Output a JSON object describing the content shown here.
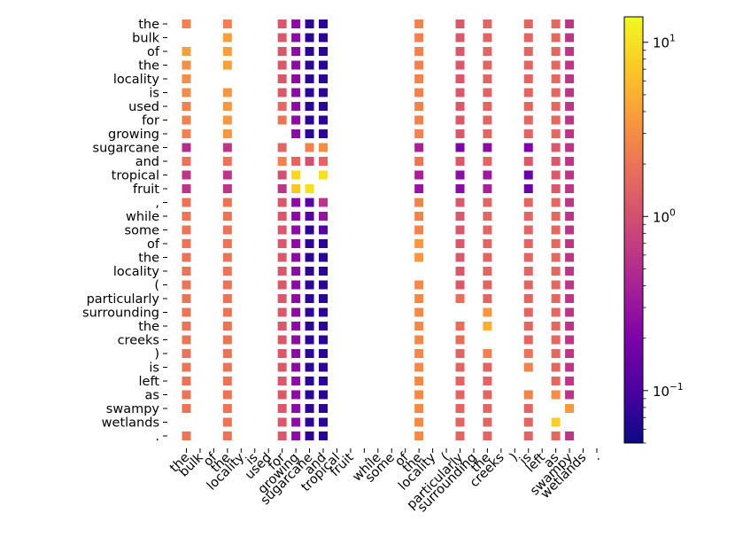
{
  "chart_data": {
    "type": "heatmap",
    "title": "",
    "xlabel": "",
    "ylabel": "",
    "colormap": "plasma",
    "color_scale": "log",
    "colorbar": {
      "vmin": 0.05,
      "vmax": 14.0,
      "ticks": [
        {
          "base": "10",
          "exp": "−1",
          "value": 0.1
        },
        {
          "base": "10",
          "exp": "0",
          "value": 1
        },
        {
          "base": "10",
          "exp": "1",
          "value": 10
        }
      ]
    },
    "tokens": [
      "the",
      "bulk",
      "of",
      "the",
      "locality",
      "is",
      "used",
      "for",
      "growing",
      "sugarcane",
      "and",
      "tropical",
      "fruit",
      ",",
      "while",
      "some",
      "of",
      "the",
      "locality",
      "(",
      "particularly",
      "surrounding",
      "the",
      "creeks",
      ")",
      "is",
      "left",
      "as",
      "swampy",
      "wetlands",
      "."
    ],
    "note": "Square matrix of token-to-token values; null = no marker drawn. Values estimated from colour.",
    "values": [
      [
        2.5,
        null,
        null,
        2.5,
        null,
        null,
        null,
        1.2,
        0.25,
        0.07,
        0.07,
        null,
        null,
        null,
        null,
        null,
        null,
        2.5,
        null,
        null,
        1.2,
        null,
        1.5,
        null,
        null,
        1.5,
        null,
        1.6,
        0.6,
        null,
        null
      ],
      [
        null,
        null,
        null,
        4.0,
        null,
        null,
        null,
        1.2,
        0.25,
        0.07,
        0.07,
        null,
        null,
        null,
        null,
        null,
        null,
        2.5,
        null,
        null,
        1.2,
        null,
        1.5,
        null,
        null,
        1.5,
        null,
        1.6,
        0.6,
        null,
        null
      ],
      [
        4.0,
        null,
        null,
        4.0,
        null,
        null,
        null,
        1.2,
        0.25,
        0.07,
        0.07,
        null,
        null,
        null,
        null,
        null,
        null,
        2.5,
        null,
        null,
        1.2,
        null,
        1.5,
        null,
        null,
        1.5,
        null,
        1.6,
        0.6,
        null,
        null
      ],
      [
        3.0,
        null,
        null,
        4.0,
        null,
        null,
        null,
        1.2,
        0.25,
        0.07,
        0.07,
        null,
        null,
        null,
        null,
        null,
        null,
        2.5,
        null,
        null,
        1.2,
        null,
        1.5,
        null,
        null,
        1.5,
        null,
        1.6,
        0.6,
        null,
        null
      ],
      [
        3.0,
        null,
        null,
        null,
        null,
        null,
        null,
        1.2,
        0.25,
        0.07,
        0.07,
        null,
        null,
        null,
        null,
        null,
        null,
        2.5,
        null,
        null,
        1.2,
        null,
        1.5,
        null,
        null,
        1.5,
        null,
        1.6,
        0.6,
        null,
        null
      ],
      [
        3.0,
        null,
        null,
        3.5,
        null,
        null,
        null,
        1.2,
        0.25,
        0.07,
        0.07,
        null,
        null,
        null,
        null,
        null,
        null,
        2.5,
        null,
        null,
        1.2,
        null,
        1.5,
        null,
        null,
        1.5,
        null,
        1.6,
        0.6,
        null,
        null
      ],
      [
        2.5,
        null,
        null,
        3.5,
        null,
        null,
        null,
        1.6,
        0.25,
        0.07,
        0.07,
        null,
        null,
        null,
        null,
        null,
        null,
        2.5,
        null,
        null,
        1.2,
        null,
        1.5,
        null,
        null,
        1.5,
        null,
        1.6,
        0.6,
        null,
        null
      ],
      [
        2.5,
        null,
        null,
        3.5,
        null,
        null,
        null,
        2.0,
        0.25,
        0.07,
        0.07,
        null,
        null,
        null,
        null,
        null,
        null,
        2.5,
        null,
        null,
        1.2,
        null,
        1.5,
        null,
        null,
        1.5,
        null,
        1.6,
        0.6,
        null,
        null
      ],
      [
        2.5,
        null,
        null,
        3.5,
        null,
        null,
        null,
        null,
        0.25,
        0.07,
        0.07,
        null,
        null,
        null,
        null,
        null,
        null,
        2.5,
        null,
        null,
        1.2,
        null,
        1.5,
        null,
        null,
        1.5,
        null,
        1.6,
        0.6,
        null,
        null
      ],
      [
        0.5,
        null,
        null,
        0.6,
        null,
        null,
        null,
        1.5,
        null,
        2.5,
        3.0,
        null,
        null,
        null,
        null,
        null,
        null,
        0.4,
        null,
        null,
        0.2,
        null,
        0.25,
        null,
        null,
        0.2,
        null,
        1.2,
        0.6,
        null,
        null
      ],
      [
        2.0,
        null,
        null,
        2.0,
        null,
        null,
        null,
        2.5,
        1.5,
        1.0,
        1.5,
        null,
        null,
        null,
        null,
        null,
        null,
        2.0,
        null,
        null,
        1.2,
        null,
        1.5,
        null,
        null,
        1.2,
        null,
        1.2,
        0.6,
        null,
        null
      ],
      [
        0.6,
        null,
        null,
        0.6,
        null,
        null,
        null,
        1.0,
        9.0,
        null,
        10.0,
        null,
        null,
        null,
        null,
        null,
        null,
        0.4,
        null,
        null,
        0.25,
        null,
        0.35,
        null,
        null,
        0.15,
        null,
        1.2,
        0.6,
        null,
        null
      ],
      [
        0.6,
        null,
        null,
        0.6,
        null,
        null,
        null,
        0.6,
        7.0,
        10.0,
        null,
        null,
        null,
        null,
        null,
        null,
        null,
        0.3,
        null,
        null,
        0.25,
        null,
        0.4,
        null,
        null,
        0.15,
        null,
        1.2,
        0.6,
        null,
        null
      ],
      [
        2.0,
        null,
        null,
        2.0,
        null,
        null,
        null,
        1.2,
        0.25,
        0.12,
        0.6,
        null,
        null,
        null,
        null,
        null,
        null,
        2.5,
        null,
        null,
        1.2,
        null,
        1.5,
        null,
        null,
        1.5,
        null,
        1.6,
        0.6,
        null,
        null
      ],
      [
        2.0,
        null,
        null,
        2.0,
        null,
        null,
        null,
        1.2,
        0.25,
        0.12,
        0.3,
        null,
        null,
        null,
        null,
        null,
        null,
        2.5,
        null,
        null,
        1.2,
        null,
        1.5,
        null,
        null,
        1.5,
        null,
        1.6,
        0.6,
        null,
        null
      ],
      [
        2.0,
        null,
        null,
        2.0,
        null,
        null,
        null,
        1.2,
        0.25,
        0.07,
        0.12,
        null,
        null,
        null,
        null,
        null,
        null,
        2.5,
        null,
        null,
        1.2,
        null,
        1.5,
        null,
        null,
        1.5,
        null,
        1.6,
        0.6,
        null,
        null
      ],
      [
        2.0,
        null,
        null,
        2.0,
        null,
        null,
        null,
        1.2,
        0.25,
        0.07,
        0.07,
        null,
        null,
        null,
        null,
        null,
        null,
        3.5,
        null,
        null,
        1.2,
        null,
        1.5,
        null,
        null,
        1.5,
        null,
        1.6,
        0.6,
        null,
        null
      ],
      [
        2.0,
        null,
        null,
        2.0,
        null,
        null,
        null,
        1.2,
        0.25,
        0.07,
        0.07,
        null,
        null,
        null,
        null,
        null,
        null,
        3.5,
        null,
        null,
        1.2,
        null,
        1.5,
        null,
        null,
        1.5,
        null,
        1.6,
        0.6,
        null,
        null
      ],
      [
        2.0,
        null,
        null,
        2.0,
        null,
        null,
        null,
        1.2,
        0.25,
        0.07,
        0.07,
        null,
        null,
        null,
        null,
        null,
        null,
        null,
        null,
        null,
        1.2,
        null,
        1.5,
        null,
        null,
        1.5,
        null,
        1.6,
        0.6,
        null,
        null
      ],
      [
        2.0,
        null,
        null,
        2.0,
        null,
        null,
        null,
        1.2,
        0.25,
        0.07,
        0.07,
        null,
        null,
        null,
        null,
        null,
        null,
        2.8,
        null,
        null,
        1.2,
        null,
        1.5,
        null,
        null,
        1.5,
        null,
        1.6,
        0.6,
        null,
        null
      ],
      [
        2.0,
        null,
        null,
        2.0,
        null,
        null,
        null,
        1.2,
        0.25,
        0.07,
        0.07,
        null,
        null,
        null,
        null,
        null,
        null,
        2.8,
        null,
        null,
        1.8,
        null,
        1.5,
        null,
        null,
        1.5,
        null,
        1.6,
        0.6,
        null,
        null
      ],
      [
        2.0,
        null,
        null,
        2.0,
        null,
        null,
        null,
        1.2,
        0.25,
        0.07,
        0.07,
        null,
        null,
        null,
        null,
        null,
        null,
        2.8,
        null,
        null,
        null,
        null,
        3.5,
        null,
        null,
        1.5,
        null,
        1.6,
        0.6,
        null,
        null
      ],
      [
        2.0,
        null,
        null,
        2.0,
        null,
        null,
        null,
        1.2,
        0.25,
        0.07,
        0.07,
        null,
        null,
        null,
        null,
        null,
        null,
        2.8,
        null,
        null,
        1.8,
        null,
        5.0,
        null,
        null,
        1.5,
        null,
        1.6,
        0.6,
        null,
        null
      ],
      [
        2.0,
        null,
        null,
        2.0,
        null,
        null,
        null,
        1.2,
        0.25,
        0.07,
        0.07,
        null,
        null,
        null,
        null,
        null,
        null,
        2.8,
        null,
        null,
        1.8,
        null,
        null,
        null,
        null,
        1.5,
        null,
        1.6,
        0.6,
        null,
        null
      ],
      [
        2.0,
        null,
        null,
        2.0,
        null,
        null,
        null,
        1.2,
        0.25,
        0.07,
        0.07,
        null,
        null,
        null,
        null,
        null,
        null,
        2.8,
        null,
        null,
        1.5,
        null,
        2.5,
        null,
        null,
        2.0,
        null,
        1.6,
        0.6,
        null,
        null
      ],
      [
        2.0,
        null,
        null,
        2.0,
        null,
        null,
        null,
        1.2,
        0.25,
        0.07,
        0.07,
        null,
        null,
        null,
        null,
        null,
        null,
        2.8,
        null,
        null,
        1.5,
        null,
        1.5,
        null,
        null,
        2.5,
        null,
        1.6,
        0.6,
        null,
        null
      ],
      [
        2.0,
        null,
        null,
        2.0,
        null,
        null,
        null,
        1.2,
        0.25,
        0.07,
        0.07,
        null,
        null,
        null,
        null,
        null,
        null,
        2.8,
        null,
        null,
        1.5,
        null,
        1.5,
        null,
        null,
        null,
        null,
        1.6,
        0.6,
        null,
        null
      ],
      [
        2.0,
        null,
        null,
        2.0,
        null,
        null,
        null,
        1.2,
        0.25,
        0.07,
        0.07,
        null,
        null,
        null,
        null,
        null,
        null,
        2.8,
        null,
        null,
        1.5,
        null,
        1.5,
        null,
        null,
        2.5,
        null,
        3.0,
        0.6,
        null,
        null
      ],
      [
        2.0,
        null,
        null,
        2.0,
        null,
        null,
        null,
        1.2,
        0.25,
        0.07,
        0.07,
        null,
        null,
        null,
        null,
        null,
        null,
        2.8,
        null,
        null,
        1.5,
        null,
        1.5,
        null,
        null,
        1.5,
        null,
        null,
        3.5,
        null,
        null
      ],
      [
        null,
        null,
        null,
        2.0,
        null,
        null,
        null,
        1.2,
        0.25,
        0.07,
        0.07,
        null,
        null,
        null,
        null,
        null,
        null,
        2.8,
        null,
        null,
        1.5,
        null,
        1.5,
        null,
        null,
        1.5,
        null,
        8.0,
        null,
        null,
        null
      ],
      [
        2.0,
        null,
        null,
        2.0,
        null,
        null,
        null,
        1.2,
        0.25,
        0.07,
        0.07,
        null,
        null,
        null,
        null,
        null,
        null,
        2.8,
        null,
        null,
        1.5,
        null,
        1.5,
        null,
        null,
        1.5,
        null,
        1.6,
        0.6,
        null,
        null
      ]
    ]
  }
}
